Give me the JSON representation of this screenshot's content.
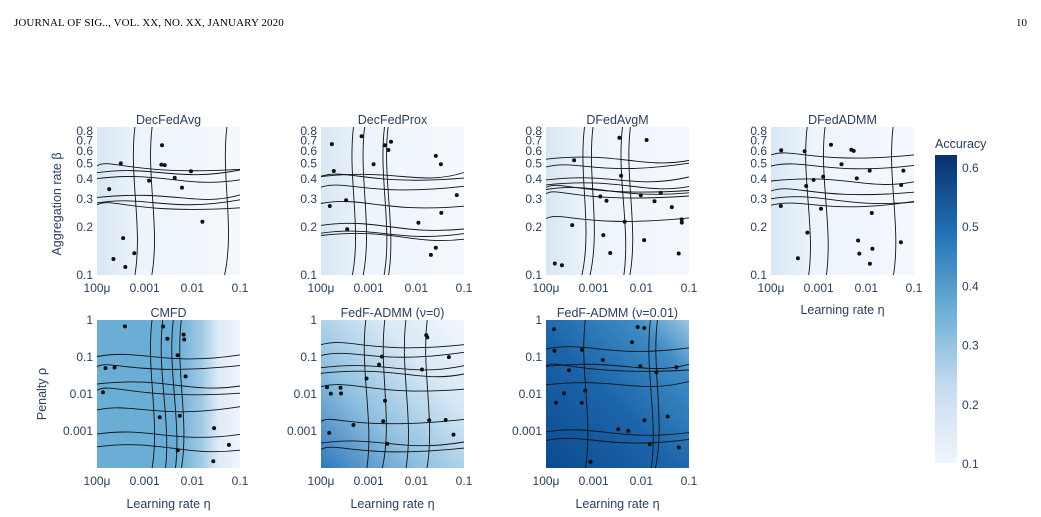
{
  "header": {
    "journal": "JOURNAL OF SIG.., VOL. XX, NO. XX, JANUARY 2020",
    "page_number": "10"
  },
  "colors": {
    "low": "#f0f6fc",
    "high": "#08306b",
    "contour": "#000000"
  },
  "colorbar": {
    "title": "Accuracy",
    "ticks": [
      "0.6",
      "0.5",
      "0.4",
      "0.3",
      "0.2",
      "0.1"
    ],
    "min": 0.1,
    "max": 0.62
  },
  "x_axis": {
    "ticks": [
      "100μ",
      "0.001",
      "0.01",
      "0.1"
    ],
    "label": "Learning rate η",
    "scale": "log",
    "range": [
      0.0001,
      0.1
    ]
  },
  "row1": {
    "ylabel": "Aggregation rate β",
    "ticks": [
      "0.8",
      "0.7",
      "0.6",
      "0.5",
      "0.4",
      "0.3",
      "0.2",
      "0.1"
    ],
    "scale": "log",
    "range": [
      0.1,
      0.85
    ]
  },
  "row2": {
    "ylabel": "Penalty ρ",
    "ticks": [
      "1",
      "0.1",
      "0.01",
      "0.001"
    ],
    "scale": "log",
    "range": [
      0.0001,
      1
    ]
  },
  "chart_data": [
    {
      "type": "heatmap",
      "title": "DecFedAvg",
      "row": 1,
      "level": 0.14
    },
    {
      "type": "heatmap",
      "title": "DecFedProx",
      "row": 1,
      "level": 0.17
    },
    {
      "type": "heatmap",
      "title": "DFedAvgM",
      "row": 1,
      "level": 0.13
    },
    {
      "type": "heatmap",
      "title": "DFedADMM",
      "row": 1,
      "level": 0.12
    },
    {
      "type": "heatmap",
      "title": "CMFD",
      "row": 2,
      "level": 0.38
    },
    {
      "type": "heatmap",
      "title": "FedF-ADMM (ν=0)",
      "row": 2,
      "level": 0.26
    },
    {
      "type": "heatmap",
      "title": "FedF-ADMM (ν=0.01)",
      "row": 2,
      "level": 0.5
    }
  ]
}
